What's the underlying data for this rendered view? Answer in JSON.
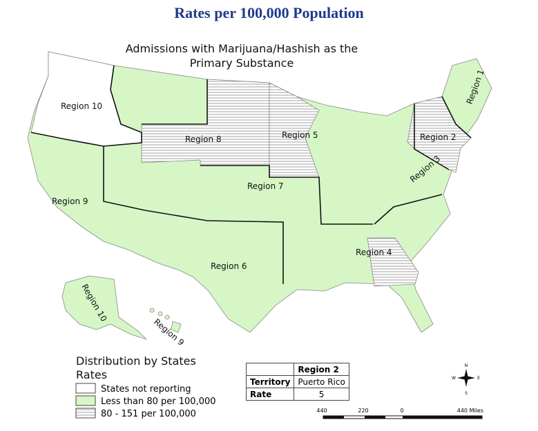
{
  "title": "Rates per 100,000 Population",
  "subtitle": "Admissions with Marijuana/Hashish as the Primary Substance",
  "regions": [
    "Region 10",
    "Region 8",
    "Region 5",
    "Region 1",
    "Region 2",
    "Region 3",
    "Region 7",
    "Region 9",
    "Region 6",
    "Region 4",
    "Region 10",
    "Region 9"
  ],
  "legend": {
    "title": "Distribution by States Rates",
    "items": [
      "States not reporting",
      "Less than 80 per 100,000",
      "80 - 151 per 100,000"
    ]
  },
  "table": {
    "header": "Region 2",
    "rows": [
      [
        "Territory",
        "Puerto Rico"
      ],
      [
        "Rate",
        5
      ]
    ]
  },
  "scale_bar": [
    "440",
    "220",
    "0",
    "440 Miles"
  ],
  "compass": [
    "N",
    "E",
    "S",
    "W"
  ]
}
